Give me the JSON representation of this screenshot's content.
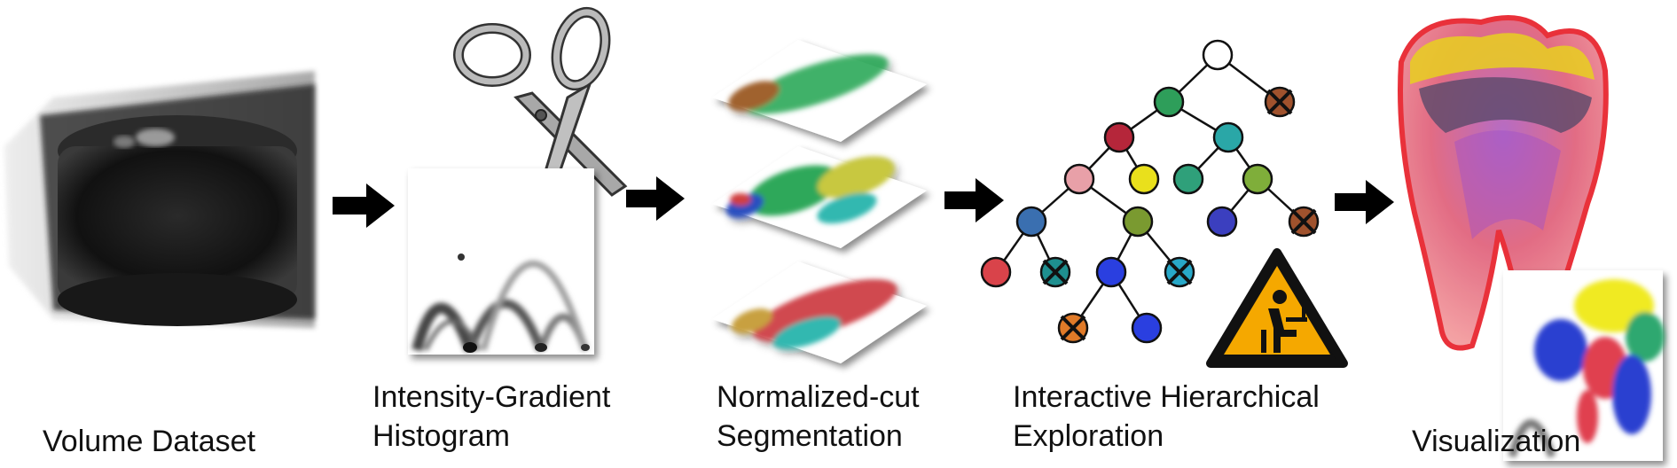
{
  "stages": [
    {
      "lines": [
        "Volume Dataset"
      ]
    },
    {
      "lines": [
        "Intensity-Gradient",
        "Histogram"
      ]
    },
    {
      "lines": [
        "Normalized-cut",
        "Segmentation"
      ]
    },
    {
      "lines": [
        "Interactive Hierarchical",
        "Exploration"
      ]
    },
    {
      "lines": [
        "Visualization"
      ]
    }
  ],
  "tree": {
    "nodes": [
      {
        "id": "root",
        "color": "#ffffff",
        "removed": false
      },
      {
        "id": "n1",
        "color": "#2e9e5a",
        "removed": false
      },
      {
        "id": "n2",
        "color": "#a0522d",
        "removed": true
      },
      {
        "id": "n3",
        "color": "#b5263a",
        "removed": false
      },
      {
        "id": "n4",
        "color": "#2aa7a7",
        "removed": false
      },
      {
        "id": "n5",
        "color": "#e8a0a8",
        "removed": false
      },
      {
        "id": "n6",
        "color": "#e9e01c",
        "removed": false
      },
      {
        "id": "n7",
        "color": "#2fa07a",
        "removed": false
      },
      {
        "id": "n8",
        "color": "#7fae3a",
        "removed": false
      },
      {
        "id": "n9",
        "color": "#3a6fb0",
        "removed": false
      },
      {
        "id": "n10",
        "color": "#7a9a30",
        "removed": false
      },
      {
        "id": "n11",
        "color": "#3b3fbf",
        "removed": false
      },
      {
        "id": "n12",
        "color": "#a0522d",
        "removed": true
      },
      {
        "id": "n13",
        "color": "#d9434a",
        "removed": false
      },
      {
        "id": "n14",
        "color": "#1e8f8f",
        "removed": true
      },
      {
        "id": "n15",
        "color": "#2a3fe0",
        "removed": false
      },
      {
        "id": "n16",
        "color": "#28a8c8",
        "removed": true
      },
      {
        "id": "n17",
        "color": "#e07a28",
        "removed": true
      },
      {
        "id": "n18",
        "color": "#2a3fe0",
        "removed": false
      }
    ],
    "edges": [
      [
        "root",
        "n1"
      ],
      [
        "root",
        "n2"
      ],
      [
        "n1",
        "n3"
      ],
      [
        "n1",
        "n4"
      ],
      [
        "n3",
        "n5"
      ],
      [
        "n3",
        "n6"
      ],
      [
        "n4",
        "n7"
      ],
      [
        "n4",
        "n8"
      ],
      [
        "n5",
        "n9"
      ],
      [
        "n5",
        "n10"
      ],
      [
        "n8",
        "n11"
      ],
      [
        "n8",
        "n12"
      ],
      [
        "n9",
        "n13"
      ],
      [
        "n9",
        "n14"
      ],
      [
        "n10",
        "n15"
      ],
      [
        "n10",
        "n16"
      ],
      [
        "n15",
        "n17"
      ],
      [
        "n15",
        "n18"
      ]
    ]
  },
  "colors": {
    "arrow": "#000000",
    "warning_fill": "#f5a800",
    "warning_border": "#111111"
  }
}
